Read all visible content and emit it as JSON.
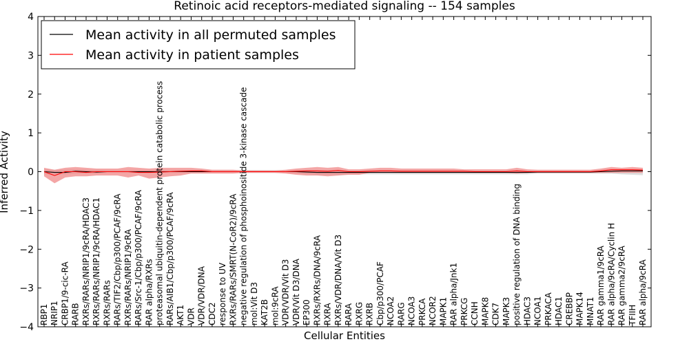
{
  "chart_data": {
    "type": "line",
    "title": "Retinoic acid receptors-mediated signaling -- 154 samples",
    "xlabel": "Cellular Entities",
    "ylabel": "Inferred Activity",
    "ylim": [
      -4,
      4
    ],
    "yticks": [
      -4,
      -3,
      -2,
      -1,
      0,
      1,
      2,
      3,
      4
    ],
    "ytick_labels": [
      "−4",
      "−3",
      "−2",
      "−1",
      "0",
      "1",
      "2",
      "3",
      "4"
    ],
    "legend_position": "top-left",
    "categories": [
      "RBP1",
      "NRIP1",
      "CRBP1/9-cic-RA",
      "RARB",
      "RXRs/RARs/NRIP1/9cRA/HDAC3",
      "RXRs/RARs/NRIP1/9cRA/HDAC1",
      "RXRs/RARs",
      "RARs/TIF2/Cbp/p300/PCAF/9cRA",
      "RXRs/RARs/NRIP1/9cRA",
      "RARs/Src-1/Cbp/p300/PCAF/9cRA",
      "RAR alpha/RXRs",
      "proteasomal ubiquitin-dependent protein catabolic process",
      "RARs/AIB1/Cbp/p300/PCAF/9cRA",
      "AKT1",
      "VDR",
      "VDR/VDR/DNA",
      "CDC2",
      "response to UV",
      "RXRs/RARs/SMRT(N-CoR2)/9cRA",
      "negative regulation of phosphoinositide 3-kinase cascade",
      "mol:Vit D3",
      "KAT2B",
      "mol:9cRA",
      "VDR/VDR/Vit D3",
      "VDR/Vit D3/DNA",
      "EP300",
      "RXRs/RXRs/DNA/9cRA",
      "RXRA",
      "RXRs/VDR/DNA/Vit D3",
      "RARA",
      "RXRG",
      "RXRB",
      "Cbp/p300/PCAF",
      "NCOA2",
      "RARG",
      "NCOA3",
      "PRKCA",
      "NCOR2",
      "MAPK1",
      "RAR alpha/Jnk1",
      "PRKCG",
      "CCNH",
      "MAPK8",
      "CDK7",
      "MAPK3",
      "positive regulation of DNA binding",
      "HDAC3",
      "NCOA1",
      "PRKACA",
      "HDAC1",
      "CREBBP",
      "MAPK14",
      "MNAT1",
      "RAR gamma1/9cRA",
      "RAR alpha/9cRA/Cyclin H",
      "RAR gamma2/9cRA",
      "TFIIH",
      "RAR alpha/9cRA"
    ],
    "series": [
      {
        "name": "Mean activity in all permuted samples",
        "color": "#000000",
        "band_color": "#c8c8c8",
        "values": [
          0.0,
          -0.02,
          -0.02,
          0.01,
          0.0,
          -0.01,
          0.0,
          0.0,
          0.0,
          0.0,
          0.0,
          0.0,
          0.0,
          0.0,
          0.0,
          0.0,
          0.0,
          0.0,
          0.0,
          0.0,
          0.0,
          0.0,
          0.0,
          0.0,
          0.0,
          -0.01,
          -0.02,
          -0.02,
          -0.02,
          -0.02,
          -0.02,
          -0.02,
          -0.02,
          -0.02,
          -0.02,
          -0.02,
          -0.02,
          -0.02,
          -0.02,
          -0.02,
          -0.02,
          -0.02,
          -0.02,
          -0.02,
          -0.02,
          -0.02,
          -0.02,
          -0.01,
          -0.01,
          -0.01,
          -0.01,
          -0.01,
          -0.01,
          0.0,
          0.01,
          0.02,
          0.02,
          0.02
        ],
        "lower": [
          -0.07,
          -0.07,
          -0.07,
          -0.05,
          -0.05,
          -0.05,
          -0.03,
          -0.03,
          -0.03,
          -0.03,
          -0.03,
          -0.03,
          -0.03,
          -0.03,
          -0.03,
          -0.03,
          -0.03,
          -0.03,
          -0.03,
          -0.03,
          -0.03,
          -0.03,
          -0.03,
          -0.03,
          -0.04,
          -0.06,
          -0.08,
          -0.08,
          -0.08,
          -0.07,
          -0.07,
          -0.07,
          -0.07,
          -0.07,
          -0.07,
          -0.07,
          -0.07,
          -0.07,
          -0.07,
          -0.07,
          -0.07,
          -0.07,
          -0.07,
          -0.07,
          -0.07,
          -0.07,
          -0.07,
          -0.05,
          -0.05,
          -0.05,
          -0.05,
          -0.05,
          -0.05,
          -0.05,
          -0.05,
          -0.07,
          -0.08,
          -0.09
        ],
        "upper": [
          0.06,
          0.05,
          0.05,
          0.06,
          0.05,
          0.05,
          0.04,
          0.04,
          0.04,
          0.04,
          0.04,
          0.04,
          0.04,
          0.04,
          0.04,
          0.04,
          0.04,
          0.04,
          0.04,
          0.04,
          0.04,
          0.04,
          0.04,
          0.04,
          0.04,
          0.04,
          0.04,
          0.04,
          0.04,
          0.03,
          0.03,
          0.03,
          0.03,
          0.03,
          0.03,
          0.03,
          0.03,
          0.03,
          0.03,
          0.03,
          0.03,
          0.03,
          0.03,
          0.03,
          0.03,
          0.03,
          0.03,
          0.03,
          0.03,
          0.03,
          0.03,
          0.03,
          0.03,
          0.04,
          0.05,
          0.06,
          0.06,
          0.06
        ]
      },
      {
        "name": "Mean activity in patient samples",
        "color": "#ff0000",
        "band_color": "#f08080",
        "values": [
          0.0,
          -0.1,
          0.0,
          0.0,
          -0.02,
          0.0,
          0.0,
          0.0,
          0.0,
          -0.02,
          -0.02,
          -0.01,
          0.0,
          0.01,
          0.02,
          0.02,
          0.0,
          0.0,
          0.0,
          0.0,
          0.0,
          0.0,
          0.0,
          0.0,
          0.01,
          0.02,
          0.02,
          0.01,
          0.03,
          0.0,
          0.0,
          0.01,
          0.02,
          0.02,
          0.01,
          0.01,
          0.01,
          0.01,
          0.01,
          0.01,
          0.01,
          0.0,
          0.0,
          0.0,
          0.0,
          0.02,
          0.0,
          0.0,
          0.0,
          0.0,
          0.0,
          0.0,
          0.0,
          0.02,
          0.05,
          0.05,
          0.05,
          0.04
        ],
        "lower": [
          -0.12,
          -0.3,
          -0.15,
          -0.12,
          -0.12,
          -0.1,
          -0.1,
          -0.1,
          -0.15,
          -0.1,
          -0.18,
          -0.15,
          -0.12,
          -0.1,
          -0.05,
          -0.05,
          -0.05,
          -0.05,
          -0.05,
          -0.03,
          -0.03,
          -0.03,
          -0.03,
          -0.05,
          -0.08,
          -0.1,
          -0.1,
          -0.12,
          -0.1,
          -0.08,
          -0.08,
          -0.03,
          -0.03,
          -0.03,
          -0.03,
          -0.03,
          -0.03,
          -0.03,
          -0.03,
          -0.03,
          -0.03,
          -0.03,
          -0.03,
          -0.03,
          -0.03,
          -0.05,
          -0.03,
          -0.03,
          -0.03,
          -0.03,
          -0.03,
          -0.03,
          -0.03,
          -0.03,
          -0.03,
          -0.03,
          -0.03,
          -0.03
        ],
        "upper": [
          0.1,
          0.05,
          0.1,
          0.12,
          0.1,
          0.08,
          0.08,
          0.08,
          0.12,
          0.1,
          0.08,
          0.1,
          0.1,
          0.1,
          0.1,
          0.08,
          0.05,
          0.05,
          0.05,
          0.03,
          0.03,
          0.03,
          0.03,
          0.05,
          0.08,
          0.1,
          0.12,
          0.1,
          0.12,
          0.06,
          0.06,
          0.08,
          0.1,
          0.1,
          0.08,
          0.08,
          0.08,
          0.08,
          0.08,
          0.08,
          0.06,
          0.06,
          0.06,
          0.06,
          0.06,
          0.1,
          0.06,
          0.05,
          0.05,
          0.05,
          0.05,
          0.05,
          0.05,
          0.08,
          0.12,
          0.1,
          0.12,
          0.1
        ]
      }
    ]
  }
}
